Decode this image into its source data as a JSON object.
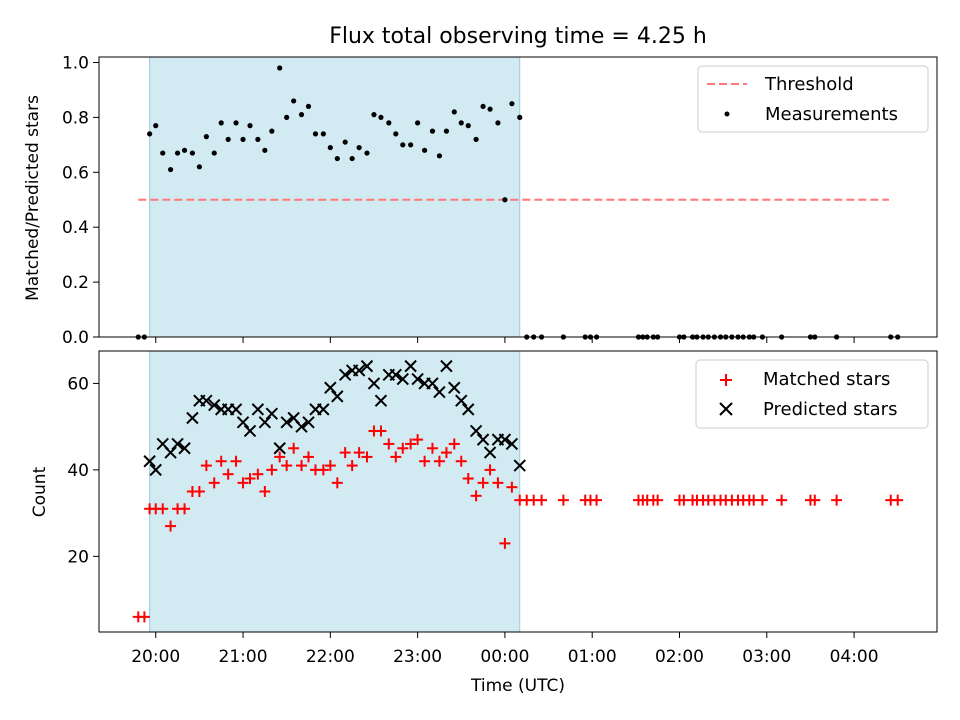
{
  "chart_data": [
    {
      "type": "scatter",
      "title": "Flux total observing time = 4.25 h",
      "xlabel": "",
      "ylabel": "Matched/Predicted stars",
      "xlim_hours": [
        19.35,
        28.95
      ],
      "ylim": [
        0.0,
        1.02
      ],
      "yticks": [
        0.0,
        0.2,
        0.4,
        0.6,
        0.8,
        1.0
      ],
      "ytick_labels": [
        "0.0",
        "0.2",
        "0.4",
        "0.6",
        "0.8",
        "1.0"
      ],
      "observing_window_hours": [
        19.93,
        24.17
      ],
      "threshold": {
        "name": "Threshold",
        "value": 0.5,
        "x_range_hours": [
          19.8,
          28.4
        ],
        "color": "#ff7777"
      },
      "legend": [
        "Threshold",
        "Measurements"
      ],
      "legend_position": "upper right",
      "series": [
        {
          "name": "Measurements",
          "color": "#000000",
          "x_hours": [
            19.8,
            19.87,
            19.93,
            20.0,
            20.08,
            20.17,
            20.25,
            20.33,
            20.42,
            20.5,
            20.58,
            20.67,
            20.75,
            20.83,
            20.92,
            21.0,
            21.08,
            21.17,
            21.25,
            21.33,
            21.42,
            21.5,
            21.58,
            21.67,
            21.75,
            21.83,
            21.92,
            22.0,
            22.08,
            22.17,
            22.25,
            22.33,
            22.42,
            22.5,
            22.58,
            22.67,
            22.75,
            22.83,
            22.92,
            23.0,
            23.08,
            23.17,
            23.25,
            23.33,
            23.42,
            23.5,
            23.58,
            23.67,
            23.75,
            23.83,
            23.92,
            24.0,
            24.08,
            24.17,
            24.25,
            24.33,
            24.42,
            24.67,
            24.92,
            24.98,
            25.05,
            25.53,
            25.58,
            25.63,
            25.7,
            25.75,
            26.0,
            26.05,
            26.15,
            26.2,
            26.27,
            26.33,
            26.4,
            26.47,
            26.53,
            26.6,
            26.67,
            26.73,
            26.8,
            26.85,
            26.95,
            27.17,
            27.5,
            27.55,
            27.8,
            28.42,
            28.5
          ],
          "y": [
            0.0,
            0.0,
            0.74,
            0.77,
            0.67,
            0.61,
            0.67,
            0.68,
            0.67,
            0.62,
            0.73,
            0.67,
            0.78,
            0.72,
            0.78,
            0.72,
            0.77,
            0.72,
            0.68,
            0.75,
            0.98,
            0.8,
            0.86,
            0.81,
            0.84,
            0.74,
            0.74,
            0.69,
            0.65,
            0.71,
            0.65,
            0.69,
            0.67,
            0.81,
            0.8,
            0.78,
            0.74,
            0.7,
            0.7,
            0.78,
            0.68,
            0.75,
            0.66,
            0.75,
            0.82,
            0.78,
            0.77,
            0.72,
            0.84,
            0.83,
            0.78,
            0.5,
            0.85,
            0.8,
            0.0,
            0.0,
            0.0,
            0.0,
            0.0,
            0.0,
            0.0,
            0.0,
            0.0,
            0.0,
            0.0,
            0.0,
            0.0,
            0.0,
            0.0,
            0.0,
            0.0,
            0.0,
            0.0,
            0.0,
            0.0,
            0.0,
            0.0,
            0.0,
            0.0,
            0.0,
            0.0,
            0.0,
            0.0,
            0.0,
            0.0,
            0.0,
            0.0
          ]
        }
      ]
    },
    {
      "type": "scatter",
      "title": "",
      "xlabel": "Time (UTC)",
      "ylabel": "Count",
      "xlim_hours": [
        19.35,
        28.95
      ],
      "ylim": [
        2.5,
        67.5
      ],
      "yticks": [
        20,
        40,
        60
      ],
      "ytick_labels": [
        "20",
        "40",
        "60"
      ],
      "xticks_hours": [
        20,
        21,
        22,
        23,
        24,
        25,
        26,
        27,
        28
      ],
      "xtick_labels": [
        "20:00",
        "21:00",
        "22:00",
        "23:00",
        "00:00",
        "01:00",
        "02:00",
        "03:00",
        "04:00"
      ],
      "observing_window_hours": [
        19.93,
        24.17
      ],
      "legend": [
        "Matched stars",
        "Predicted stars"
      ],
      "legend_position": "upper right",
      "series": [
        {
          "name": "Matched stars",
          "marker": "+",
          "color": "#ff0000",
          "x_hours": [
            19.8,
            19.87,
            19.93,
            20.0,
            20.08,
            20.17,
            20.25,
            20.33,
            20.42,
            20.5,
            20.58,
            20.67,
            20.75,
            20.83,
            20.92,
            21.0,
            21.08,
            21.17,
            21.25,
            21.33,
            21.42,
            21.5,
            21.58,
            21.67,
            21.75,
            21.83,
            21.92,
            22.0,
            22.08,
            22.17,
            22.25,
            22.33,
            22.42,
            22.5,
            22.58,
            22.67,
            22.75,
            22.83,
            22.92,
            23.0,
            23.08,
            23.17,
            23.25,
            23.33,
            23.42,
            23.5,
            23.58,
            23.67,
            23.75,
            23.83,
            23.92,
            24.0,
            24.08,
            24.17,
            24.25,
            24.33,
            24.42,
            24.67,
            24.92,
            24.98,
            25.05,
            25.53,
            25.58,
            25.63,
            25.7,
            25.75,
            26.0,
            26.05,
            26.15,
            26.2,
            26.27,
            26.33,
            26.4,
            26.47,
            26.53,
            26.6,
            26.67,
            26.73,
            26.8,
            26.85,
            26.95,
            27.17,
            27.5,
            27.55,
            27.8,
            28.42,
            28.5
          ],
          "y": [
            6,
            6,
            31,
            31,
            31,
            27,
            31,
            31,
            35,
            35,
            41,
            37,
            42,
            39,
            42,
            37,
            38,
            39,
            35,
            40,
            43,
            41,
            45,
            41,
            43,
            40,
            40,
            41,
            37,
            44,
            41,
            44,
            43,
            49,
            49,
            46,
            43,
            45,
            46,
            47,
            42,
            45,
            42,
            44,
            46,
            42,
            38,
            34,
            37,
            40,
            37,
            23,
            36,
            33,
            33,
            33,
            33,
            33,
            33,
            33,
            33,
            33,
            33,
            33,
            33,
            33,
            33,
            33,
            33,
            33,
            33,
            33,
            33,
            33,
            33,
            33,
            33,
            33,
            33,
            33,
            33,
            33,
            33,
            33,
            33,
            33,
            33
          ]
        },
        {
          "name": "Predicted stars",
          "marker": "x",
          "color": "#000000",
          "x_hours": [
            19.93,
            20.0,
            20.08,
            20.17,
            20.25,
            20.33,
            20.42,
            20.5,
            20.58,
            20.67,
            20.75,
            20.83,
            20.92,
            21.0,
            21.08,
            21.17,
            21.25,
            21.33,
            21.42,
            21.5,
            21.58,
            21.67,
            21.75,
            21.83,
            21.92,
            22.0,
            22.08,
            22.17,
            22.25,
            22.33,
            22.42,
            22.5,
            22.58,
            22.67,
            22.75,
            22.83,
            22.92,
            23.0,
            23.08,
            23.17,
            23.25,
            23.33,
            23.42,
            23.5,
            23.58,
            23.67,
            23.75,
            23.83,
            23.92,
            24.0,
            24.08,
            24.17
          ],
          "y": [
            42,
            40,
            46,
            44,
            46,
            45,
            52,
            56,
            56,
            55,
            54,
            54,
            54,
            51,
            49,
            54,
            51,
            53,
            45,
            51,
            52,
            50,
            51,
            54,
            54,
            59,
            57,
            62,
            63,
            63,
            64,
            60,
            56,
            62,
            62,
            61,
            64,
            61,
            60,
            60,
            58,
            64,
            59,
            56,
            54,
            49,
            47,
            44,
            47,
            47,
            46,
            41
          ]
        }
      ]
    }
  ]
}
